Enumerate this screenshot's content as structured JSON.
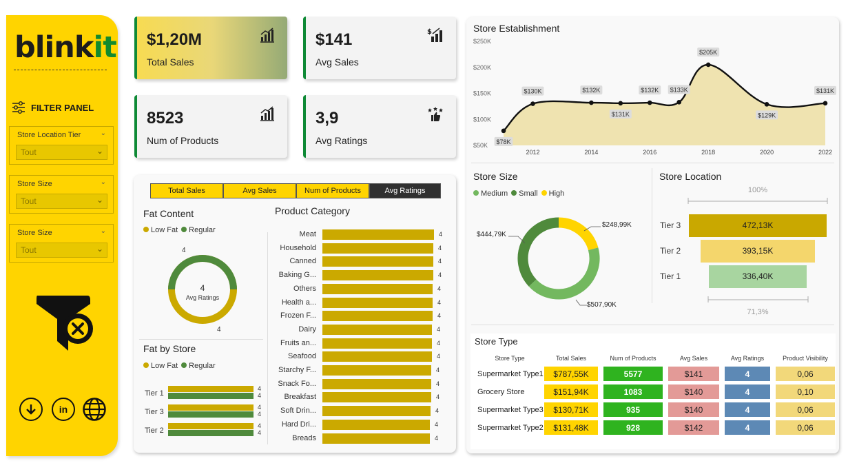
{
  "brand": {
    "logo_main": "blink",
    "logo_accent": "it",
    "accent_color": "#128a2e",
    "sidebar_color": "#ffd400"
  },
  "filter_panel": {
    "title": "FILTER PANEL",
    "slicers": [
      {
        "label": "Store Location Tier",
        "value": "Tout"
      },
      {
        "label": "Store Size",
        "value": "Tout"
      },
      {
        "label": "Store Size",
        "value": "Tout"
      }
    ],
    "social": {
      "download": "download-icon",
      "linkedin": "in",
      "web": "globe-icon"
    }
  },
  "kpis": [
    {
      "value": "$1,20M",
      "caption": "Total Sales",
      "icon": "bar-growth-icon"
    },
    {
      "value": "$141",
      "caption": "Avg Sales",
      "icon": "dollar-chart-icon"
    },
    {
      "value": "8523",
      "caption": "Num of Products",
      "icon": "bar-growth-icon"
    },
    {
      "value": "3,9",
      "caption": "Avg Ratings",
      "icon": "rating-thumb-icon"
    }
  ],
  "metric_tabs": [
    "Total Sales",
    "Avg Sales",
    "Num of Products",
    "Avg Ratings"
  ],
  "fat_content": {
    "title": "Fat Content",
    "legend": [
      "Low Fat",
      "Regular"
    ],
    "center_value": "4",
    "center_label": "Avg Ratings",
    "label_top": "4",
    "label_bottom": "4"
  },
  "fat_by_store": {
    "title": "Fat by Store",
    "legend": [
      "Low Fat",
      "Regular"
    ],
    "rows": [
      {
        "tier": "Tier 1",
        "low": "4",
        "reg": "4"
      },
      {
        "tier": "Tier 3",
        "low": "4",
        "reg": "4"
      },
      {
        "tier": "Tier 2",
        "low": "4",
        "reg": "4"
      }
    ]
  },
  "product_category": {
    "title": "Product Category",
    "items": [
      {
        "label": "Meat",
        "value": "4"
      },
      {
        "label": "Household",
        "value": "4"
      },
      {
        "label": "Canned",
        "value": "4"
      },
      {
        "label": "Baking G...",
        "value": "4"
      },
      {
        "label": "Others",
        "value": "4"
      },
      {
        "label": "Health a...",
        "value": "4"
      },
      {
        "label": "Frozen F...",
        "value": "4"
      },
      {
        "label": "Dairy",
        "value": "4"
      },
      {
        "label": "Fruits an...",
        "value": "4"
      },
      {
        "label": "Seafood",
        "value": "4"
      },
      {
        "label": "Starchy F...",
        "value": "4"
      },
      {
        "label": "Snack Fo...",
        "value": "4"
      },
      {
        "label": "Breakfast",
        "value": "4"
      },
      {
        "label": "Soft Drin...",
        "value": "4"
      },
      {
        "label": "Hard Dri...",
        "value": "4"
      },
      {
        "label": "Breads",
        "value": "4"
      }
    ]
  },
  "chart_data": {
    "type": "area",
    "title": "Store Establishment",
    "x": [
      2011,
      2012,
      2014,
      2015,
      2016,
      2017,
      2018,
      2020,
      2022
    ],
    "values": [
      78,
      130,
      132,
      131,
      132,
      133,
      205,
      129,
      131
    ],
    "data_labels": [
      "$78K",
      "$130K",
      "$132K",
      "$131K",
      "$132K",
      "$133K",
      "$205K",
      "$129K",
      "$131K"
    ],
    "x_ticks": [
      "2012",
      "2014",
      "2016",
      "2018",
      "2020",
      "2022"
    ],
    "y_ticks": [
      "$50K",
      "$100K",
      "$150K",
      "$200K",
      "$250K"
    ],
    "ylim": [
      50,
      250
    ]
  },
  "store_size": {
    "title": "Store Size",
    "legend": [
      "Medium",
      "Small",
      "High"
    ],
    "slices": [
      {
        "name": "High",
        "value": 248.99,
        "label": "$248,99K",
        "color": "#ffd400"
      },
      {
        "name": "Medium",
        "value": 507.9,
        "label": "$507,90K",
        "color": "#73b85f"
      },
      {
        "name": "Small",
        "value": 444.79,
        "label": "$444,79K",
        "color": "#4f8a3c"
      }
    ]
  },
  "store_location": {
    "title": "Store Location",
    "top_label": "100%",
    "bottom_label": "71,3%",
    "tiers": [
      {
        "name": "Tier 3",
        "value": 472.13,
        "label": "472,13K",
        "color": "#c9a800"
      },
      {
        "name": "Tier 2",
        "value": 393.15,
        "label": "393,15K",
        "color": "#f4d66c"
      },
      {
        "name": "Tier 1",
        "value": 336.4,
        "label": "336,40K",
        "color": "#a8d5a0"
      }
    ]
  },
  "store_type": {
    "title": "Store Type",
    "columns": [
      "Store Type",
      "Total Sales",
      "Num of Products",
      "Avg Sales",
      "Avg Ratings",
      "Product Visibility"
    ],
    "rows": [
      {
        "name": "Supermarket Type1",
        "sales": "$787,55K",
        "num": "5577",
        "avg": "$141",
        "rating": "4",
        "vis": "0,06"
      },
      {
        "name": "Grocery Store",
        "sales": "$151,94K",
        "num": "1083",
        "avg": "$140",
        "rating": "4",
        "vis": "0,10"
      },
      {
        "name": "Supermarket Type3",
        "sales": "$130,71K",
        "num": "935",
        "avg": "$140",
        "rating": "4",
        "vis": "0,06"
      },
      {
        "name": "Supermarket Type2",
        "sales": "$131,48K",
        "num": "928",
        "avg": "$142",
        "rating": "4",
        "vis": "0,06"
      }
    ]
  }
}
